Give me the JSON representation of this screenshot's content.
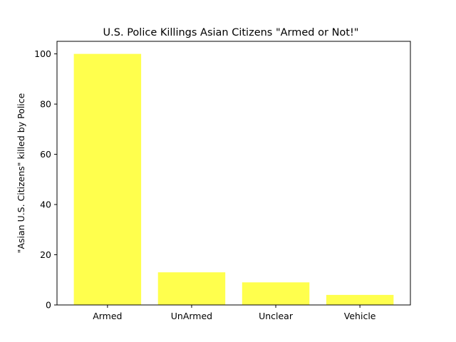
{
  "chart_data": {
    "type": "bar",
    "title": "U.S. Police Killings Asian Citizens \"Armed or Not!\"",
    "xlabel": "",
    "ylabel": "\"Asian U.S. Citizens\" killed by Police",
    "categories": [
      "Armed",
      "UnArmed",
      "Unclear",
      "Vehicle"
    ],
    "values": [
      100,
      13,
      9,
      4
    ],
    "ylim": [
      0,
      105
    ],
    "yticks": [
      0,
      20,
      40,
      60,
      80,
      100
    ],
    "bar_color": "#ffff4d",
    "grid": false,
    "legend": "none"
  }
}
